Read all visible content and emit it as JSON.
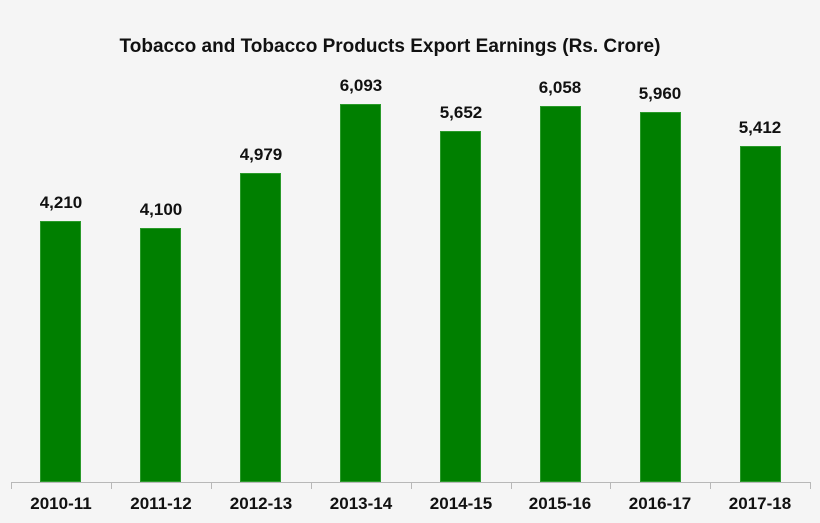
{
  "chart_data": {
    "type": "bar",
    "title": "Tobacco and Tobacco Products Export Earnings (Rs. Crore)",
    "categories": [
      "2010-11",
      "2011-12",
      "2012-13",
      "2013-14",
      "2014-15",
      "2015-16",
      "2016-17",
      "2017-18"
    ],
    "values": [
      4210,
      4100,
      4979,
      6093,
      5652,
      6058,
      5960,
      5412
    ],
    "labels": [
      "4,210",
      "4,100",
      "4,979",
      "6,093",
      "5,652",
      "6,058",
      "5,960",
      "5,412"
    ],
    "xlabel": "",
    "ylabel": "",
    "ylim": [
      0,
      6100
    ],
    "grid": false,
    "legend": null,
    "bar_color": "#007f00"
  }
}
